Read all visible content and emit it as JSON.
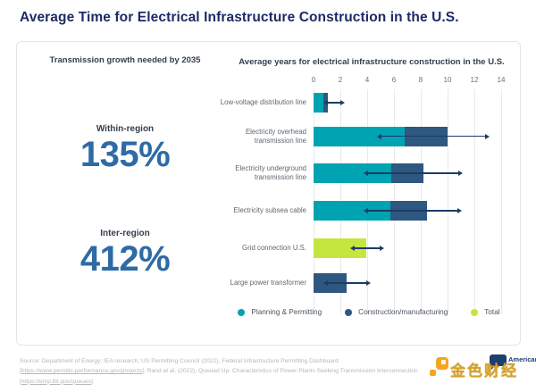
{
  "page": {
    "title": "Average Time for Electrical Infrastructure Construction in the U.S."
  },
  "left_panel": {
    "header": "Transmission growth needed by 2035",
    "stats": [
      {
        "label": "Within-region",
        "value": "135%"
      },
      {
        "label": "Inter-region",
        "value": "412%"
      }
    ]
  },
  "chart_data": {
    "type": "bar",
    "orientation": "horizontal",
    "title": "Average years for electrical infrastructure construction in the U.S.",
    "xlabel": "",
    "ylabel": "",
    "xlim": [
      0,
      14
    ],
    "x_ticks": [
      0,
      2,
      4,
      6,
      8,
      10,
      12,
      14
    ],
    "grid": true,
    "legend_position": "bottom",
    "units": "years",
    "categories": [
      "Low-voltage distribution line",
      "Electricity overhead transmission line",
      "Electricity underground transmission line",
      "Electricity subsea cable",
      "Grid connection U.S.",
      "Large power transformer"
    ],
    "series": [
      {
        "name": "Planning & Permitting",
        "color": "#00a3b1",
        "values": [
          0.7,
          6.8,
          5.8,
          5.7,
          0,
          0
        ]
      },
      {
        "name": "Construction/manufacturing",
        "color": "#2e587f",
        "values": [
          0.35,
          3.2,
          2.4,
          2.75,
          0,
          2.45
        ]
      },
      {
        "name": "Total",
        "color": "#c5e53f",
        "values": [
          0,
          0,
          0,
          0,
          3.9,
          0
        ]
      }
    ],
    "error_bars": [
      [
        1.0,
        2.0
      ],
      [
        5.0,
        12.8
      ],
      [
        4.0,
        10.8
      ],
      [
        4.0,
        10.7
      ],
      [
        3.0,
        4.9
      ],
      [
        1.0,
        3.9
      ]
    ]
  },
  "footer": {
    "source_parts": [
      {
        "text": "Source: Department of Energy; IEA research; US Permitting Council (2022), Federal Infrastructure Permitting Dashboard [",
        "link": false
      },
      {
        "text": "https://www.permits.performance.gov/projects",
        "link": true
      },
      {
        "text": "]; Rand et al. (2022), Queued Up: Characteristics of Power Plants Seeking Transmission Interconnection [",
        "link": false
      },
      {
        "text": "https://emp.lbl.gov/queues",
        "link": true
      },
      {
        "text": "]",
        "link": false
      }
    ]
  },
  "watermark": {
    "brand_text": "American",
    "cn_text": "金色财经",
    "accent_orange": "#f6a51f",
    "accent_navy": "#1d3e6e",
    "accent_gold": "#d9a62e"
  }
}
